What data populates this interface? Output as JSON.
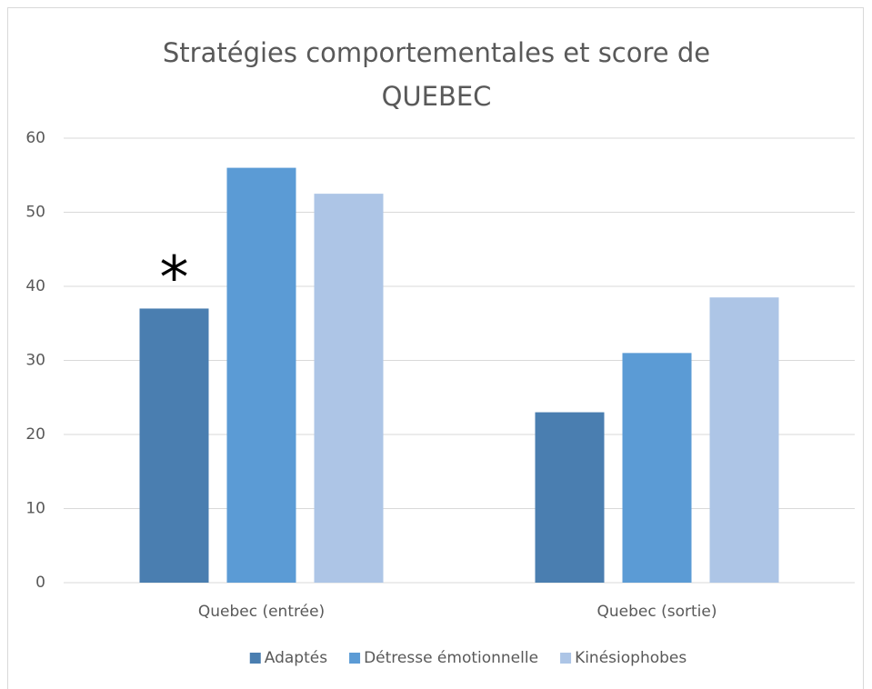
{
  "chart_data": {
    "type": "bar",
    "title": "Stratégies comportementales et score de QUEBEC",
    "categories": [
      "Quebec (entrée)",
      "Quebec (sortie)"
    ],
    "series": [
      {
        "name": "Adaptés",
        "color": "#4a7eb0",
        "values": [
          37,
          23
        ]
      },
      {
        "name": "Détresse émotionnelle",
        "color": "#5b9bd5",
        "values": [
          56,
          31
        ]
      },
      {
        "name": "Kinésiophobes",
        "color": "#adc5e6",
        "values": [
          52.5,
          38.5
        ]
      }
    ],
    "annotation": "*",
    "ylim": [
      0,
      60
    ],
    "yticks": [
      0,
      10,
      20,
      30,
      40,
      50,
      60
    ],
    "grid": true,
    "legend": "bottom"
  }
}
